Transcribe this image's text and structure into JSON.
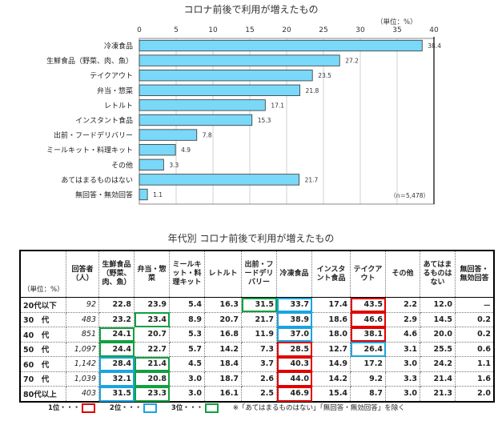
{
  "chart_data": {
    "type": "bar",
    "orientation": "horizontal",
    "title": "コロナ前後で利用が増えたもの",
    "unit_label": "（単位：%）",
    "sample_note": "（n＝5,478）",
    "xlim": [
      0,
      40
    ],
    "xticks": [
      0,
      5,
      10,
      15,
      20,
      25,
      30,
      35,
      40
    ],
    "grid": true,
    "bar_color": "#7ad8f8",
    "categories": [
      "冷凍食品",
      "生鮮食品（野菜、肉、魚）",
      "テイクアウト",
      "弁当・惣菜",
      "レトルト",
      "インスタント食品",
      "出前・フードデリバリー",
      "ミールキット・料理キット",
      "その他",
      "あてはまるものはない",
      "無回答・無効回答"
    ],
    "values": [
      38.4,
      27.2,
      23.5,
      21.8,
      17.1,
      15.3,
      7.8,
      4.9,
      3.3,
      21.7,
      1.1
    ],
    "value_labels": [
      "38.4",
      "27.2",
      "23.5",
      "21.8",
      "17.1",
      "15.3",
      "7.8",
      "4.9",
      "3.3",
      "21.7",
      "1.1"
    ]
  },
  "table": {
    "title": "年代別 コロナ前後で利用が増えたもの",
    "unit_label": "（単位：%）",
    "headers": [
      "回答者（人）",
      "生鮮食品（野菜、肉、魚）",
      "弁当・惣菜",
      "ミールキット・料理キット",
      "レトルト",
      "出前・フードデリバリー",
      "冷凍食品",
      "インスタント食品",
      "テイクアウト",
      "その他",
      "あてはまるものはない",
      "無回答・無効回答"
    ],
    "rows": [
      {
        "age": "20代以下",
        "values": [
          "92",
          "22.8",
          "23.9",
          "5.4",
          "16.3",
          "31.5",
          "33.7",
          "17.4",
          "43.5",
          "2.2",
          "12.0",
          "－"
        ],
        "ranks": [
          0,
          0,
          0,
          0,
          0,
          3,
          2,
          0,
          1,
          0,
          0,
          0
        ]
      },
      {
        "age": "30　代",
        "values": [
          "483",
          "23.2",
          "23.4",
          "8.9",
          "20.7",
          "21.7",
          "38.9",
          "18.6",
          "46.6",
          "2.9",
          "14.5",
          "0.2"
        ],
        "ranks": [
          0,
          0,
          3,
          0,
          0,
          0,
          2,
          0,
          1,
          0,
          0,
          0
        ]
      },
      {
        "age": "40　代",
        "values": [
          "851",
          "24.1",
          "20.7",
          "5.3",
          "16.8",
          "11.9",
          "37.0",
          "18.0",
          "38.1",
          "4.6",
          "20.0",
          "0.2"
        ],
        "ranks": [
          0,
          3,
          0,
          0,
          0,
          0,
          2,
          0,
          1,
          0,
          0,
          0
        ]
      },
      {
        "age": "50　代",
        "values": [
          "1,097",
          "24.4",
          "22.7",
          "5.7",
          "14.2",
          "7.3",
          "28.5",
          "12.7",
          "26.4",
          "3.1",
          "25.5",
          "0.6"
        ],
        "ranks": [
          0,
          3,
          0,
          0,
          0,
          0,
          1,
          0,
          2,
          0,
          0,
          0
        ]
      },
      {
        "age": "60　代",
        "values": [
          "1,142",
          "28.4",
          "21.4",
          "4.5",
          "18.4",
          "3.7",
          "40.3",
          "14.9",
          "17.2",
          "3.0",
          "24.2",
          "1.1"
        ],
        "ranks": [
          0,
          2,
          3,
          0,
          0,
          0,
          1,
          0,
          0,
          0,
          0,
          0
        ]
      },
      {
        "age": "70　代",
        "values": [
          "1,039",
          "32.1",
          "20.8",
          "3.0",
          "18.7",
          "2.6",
          "44.0",
          "14.2",
          "9.2",
          "3.3",
          "21.4",
          "1.6"
        ],
        "ranks": [
          0,
          2,
          3,
          0,
          0,
          0,
          1,
          0,
          0,
          0,
          0,
          0
        ]
      },
      {
        "age": "80代以上",
        "values": [
          "403",
          "31.5",
          "23.3",
          "3.0",
          "16.1",
          "2.5",
          "46.9",
          "15.4",
          "8.7",
          "3.0",
          "21.3",
          "2.0"
        ],
        "ranks": [
          0,
          2,
          3,
          0,
          0,
          0,
          1,
          0,
          0,
          0,
          0,
          0
        ]
      }
    ]
  },
  "legend": {
    "items": [
      {
        "label": "1位・・・",
        "color": "#e00000"
      },
      {
        "label": "2位・・・",
        "color": "#1aa4e0"
      },
      {
        "label": "3位・・・",
        "color": "#10a040"
      }
    ],
    "note": "※「あてはまるものはない」「無回答・無効回答」を除く"
  }
}
